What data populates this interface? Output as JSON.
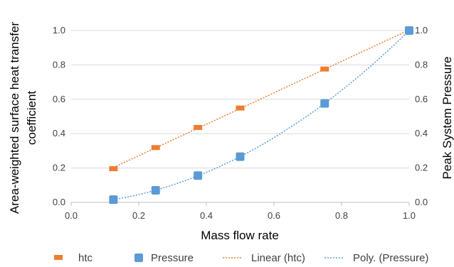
{
  "chart_data": {
    "type": "scatter",
    "xlabel": "Mass flow rate",
    "ylabel": "Area-weighted surface heat transfer coefficient",
    "ylabel_lines": [
      "Area-weighted surface heat transfer",
      "coefficient"
    ],
    "y2label": "Peak System Pressure",
    "xlim": [
      0.0,
      1.0
    ],
    "ylim": [
      0.0,
      1.0
    ],
    "y2lim": [
      0.0,
      1.0
    ],
    "x_ticks": [
      "0.0",
      "0.2",
      "0.4",
      "0.6",
      "0.8",
      "1.0"
    ],
    "y_ticks": [
      "0.0",
      "0.2",
      "0.4",
      "0.6",
      "0.8",
      "1.0"
    ],
    "y2_ticks": [
      "0.0",
      "0.2",
      "0.4",
      "0.6",
      "0.8",
      "1.0"
    ],
    "grid": "horizontal",
    "legend_position": "bottom",
    "series": [
      {
        "name": "htc",
        "marker": "dash",
        "axis": "left",
        "color": "#ED7D31",
        "x": [
          0.125,
          0.25,
          0.375,
          0.5,
          0.75,
          1.0
        ],
        "y": [
          0.196,
          0.319,
          0.436,
          0.549,
          0.776,
          1.0
        ]
      },
      {
        "name": "Pressure",
        "marker": "square",
        "axis": "right",
        "color": "#5B9BD5",
        "x": [
          0.125,
          0.25,
          0.375,
          0.5,
          0.75,
          1.0
        ],
        "y": [
          0.016,
          0.07,
          0.156,
          0.266,
          0.576,
          1.0
        ]
      }
    ],
    "trendlines": [
      {
        "name": "Linear (htc)",
        "kind": "linear",
        "of": "htc",
        "color": "#ED7D31"
      },
      {
        "name": "Poly. (Pressure)",
        "kind": "polynomial",
        "of": "Pressure",
        "color": "#5B9BD5"
      }
    ]
  }
}
